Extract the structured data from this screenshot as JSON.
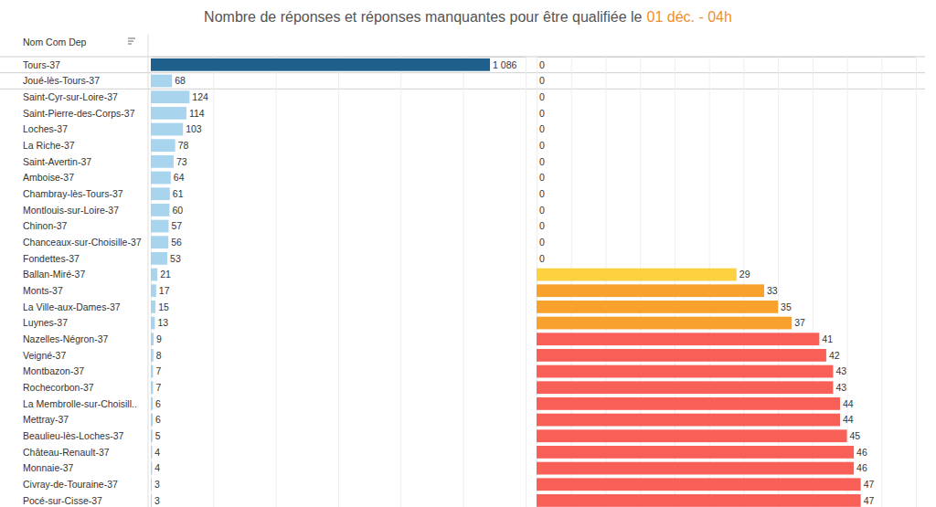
{
  "chart_data": [
    {
      "type": "bar",
      "orientation": "horizontal",
      "title": "Nombre de réponses et réponses manquantes pour être qualifiée  le",
      "subtitle": "01 déc. -  04h",
      "y_label": "Nom Com Dep",
      "categories": [
        "Tours-37",
        "Joué-lès-Tours-37",
        "Saint-Cyr-sur-Loire-37",
        "Saint-Pierre-des-Corps-37",
        "Loches-37",
        "La Riche-37",
        "Saint-Avertin-37",
        "Amboise-37",
        "Chambray-lès-Tours-37",
        "Montlouis-sur-Loire-37",
        "Chinon-37",
        "Chanceaux-sur-Choisille-37",
        "Fondettes-37",
        "Ballan-Miré-37",
        "Monts-37",
        "La Ville-aux-Dames-37",
        "Luynes-37",
        "Nazelles-Négron-37",
        "Veigné-37",
        "Montbazon-37",
        "Rochecorbon-37",
        "La Membrolle-sur-Choisill..",
        "Mettray-37",
        "Beaulieu-lès-Loches-37",
        "Château-Renault-37",
        "Monnaie-37",
        "Civray-de-Touraine-37",
        "Pocé-sur-Cisse-37"
      ],
      "values": [
        1086,
        68,
        124,
        114,
        103,
        78,
        73,
        64,
        61,
        60,
        57,
        56,
        53,
        21,
        17,
        15,
        13,
        9,
        8,
        7,
        7,
        6,
        6,
        5,
        4,
        4,
        3,
        3
      ],
      "value_labels": [
        "1 086",
        "68",
        "124",
        "114",
        "103",
        "78",
        "73",
        "64",
        "61",
        "60",
        "57",
        "56",
        "53",
        "21",
        "17",
        "15",
        "13",
        "9",
        "8",
        "7",
        "7",
        "6",
        "6",
        "5",
        "4",
        "4",
        "3",
        "3"
      ],
      "colors": [
        "#1f5f8b",
        "#a9d4ee",
        "#a9d4ee",
        "#a9d4ee",
        "#a9d4ee",
        "#a9d4ee",
        "#a9d4ee",
        "#a9d4ee",
        "#a9d4ee",
        "#a9d4ee",
        "#a9d4ee",
        "#a9d4ee",
        "#a9d4ee",
        "#a9d4ee",
        "#a9d4ee",
        "#a9d4ee",
        "#a9d4ee",
        "#a9d4ee",
        "#a9d4ee",
        "#a9d4ee",
        "#a9d4ee",
        "#a9d4ee",
        "#a9d4ee",
        "#a9d4ee",
        "#a9d4ee",
        "#a9d4ee",
        "#a9d4ee",
        "#a9d4ee"
      ],
      "xlim": [
        0,
        1200
      ],
      "xticks": [
        0,
        200,
        400,
        600,
        800,
        1000,
        1200
      ],
      "grid": true,
      "data_labels": true,
      "tick_labels": "y"
    },
    {
      "type": "bar",
      "orientation": "horizontal",
      "values": [
        0,
        0,
        0,
        0,
        0,
        0,
        0,
        0,
        0,
        0,
        0,
        0,
        0,
        29,
        33,
        35,
        37,
        41,
        42,
        43,
        43,
        44,
        44,
        45,
        46,
        46,
        47,
        47
      ],
      "colors": [
        "#fdd13f",
        "#fdd13f",
        "#fdd13f",
        "#fdd13f",
        "#fdd13f",
        "#fdd13f",
        "#fdd13f",
        "#fdd13f",
        "#fdd13f",
        "#fdd13f",
        "#fdd13f",
        "#fdd13f",
        "#fdd13f",
        "#fdd13f",
        "#f9a12d",
        "#f9a12d",
        "#f9a12d",
        "#f85f57",
        "#f85f57",
        "#f85f57",
        "#f85f57",
        "#f85f57",
        "#f85f57",
        "#f85f57",
        "#f85f57",
        "#f85f57",
        "#f85f57",
        "#f85f57"
      ],
      "xlim": [
        0,
        55
      ],
      "xticks": [
        0,
        5,
        10,
        15,
        20,
        25,
        30,
        35,
        40,
        45,
        50,
        55
      ],
      "grid": true,
      "data_labels": true,
      "tick_labels": false
    }
  ]
}
